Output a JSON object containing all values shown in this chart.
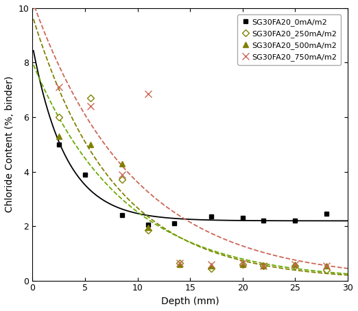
{
  "title": "",
  "xlabel": "Depth (mm)",
  "ylabel": "Chloride Content (%, binder)",
  "xlim": [
    0,
    30
  ],
  "ylim": [
    0,
    10
  ],
  "xticks": [
    0,
    5,
    10,
    15,
    20,
    25,
    30
  ],
  "yticks": [
    0,
    2,
    4,
    6,
    8,
    10
  ],
  "series": [
    {
      "label": "SG30FA20_0mA/m2",
      "marker": "s",
      "mfc": "black",
      "mec": "black",
      "ms": 5,
      "line_color": "black",
      "line_style": "-",
      "x_data": [
        2.5,
        5.0,
        8.5,
        11.0,
        13.5,
        17.0,
        20.0,
        22.0,
        25.0,
        28.0
      ],
      "y_data": [
        5.0,
        3.9,
        2.4,
        2.05,
        2.1,
        2.35,
        2.3,
        2.2,
        2.2,
        2.45
      ],
      "curve_a": 3.8,
      "curve_b": 0.028,
      "curve_c": 1.85
    },
    {
      "label": "SG30FA20_250mA/m2",
      "marker": "D",
      "mfc": "white",
      "mec": "#808000",
      "ms": 5,
      "line_color": "#808000",
      "line_style": "--",
      "x_data": [
        2.5,
        5.5,
        8.5,
        11.0,
        14.0,
        17.0,
        20.0,
        22.0,
        25.0,
        28.0
      ],
      "y_data": [
        6.0,
        6.7,
        3.7,
        1.85,
        0.65,
        0.45,
        0.6,
        0.55,
        0.55,
        0.4
      ],
      "curve_a": 55.0,
      "curve_b": 0.58,
      "curve_c": 0.25
    },
    {
      "label": "SG30FA20_500mA/m2",
      "marker": "^",
      "mfc": "#808000",
      "mec": "#808000",
      "ms": 6,
      "line_color": "#6aaa00",
      "line_style": "--",
      "x_data": [
        2.5,
        5.5,
        8.5,
        11.0,
        14.0,
        17.0,
        20.0,
        22.0,
        25.0,
        28.0
      ],
      "y_data": [
        5.3,
        5.0,
        4.3,
        1.95,
        0.6,
        0.55,
        0.6,
        0.55,
        0.6,
        0.55
      ],
      "curve_a": 38.0,
      "curve_b": 0.5,
      "curve_c": 0.22
    },
    {
      "label": "SG30FA20_750mA/m2",
      "marker": "x",
      "mfc": "#cc6655",
      "mec": "#cc6655",
      "ms": 7,
      "line_color": "#cc6655",
      "line_style": "--",
      "x_data": [
        2.5,
        5.5,
        8.5,
        11.0,
        14.0,
        17.0,
        20.0,
        22.0,
        25.0,
        28.0
      ],
      "y_data": [
        7.1,
        6.4,
        3.9,
        6.85,
        0.65,
        0.6,
        0.65,
        0.55,
        0.6,
        0.55
      ],
      "curve_a": 80.0,
      "curve_b": 0.62,
      "curve_c": 0.3
    }
  ],
  "figsize": [
    5.22,
    4.54
  ],
  "dpi": 100,
  "legend_fontsize": 8,
  "axis_fontsize": 10,
  "tick_fontsize": 9
}
